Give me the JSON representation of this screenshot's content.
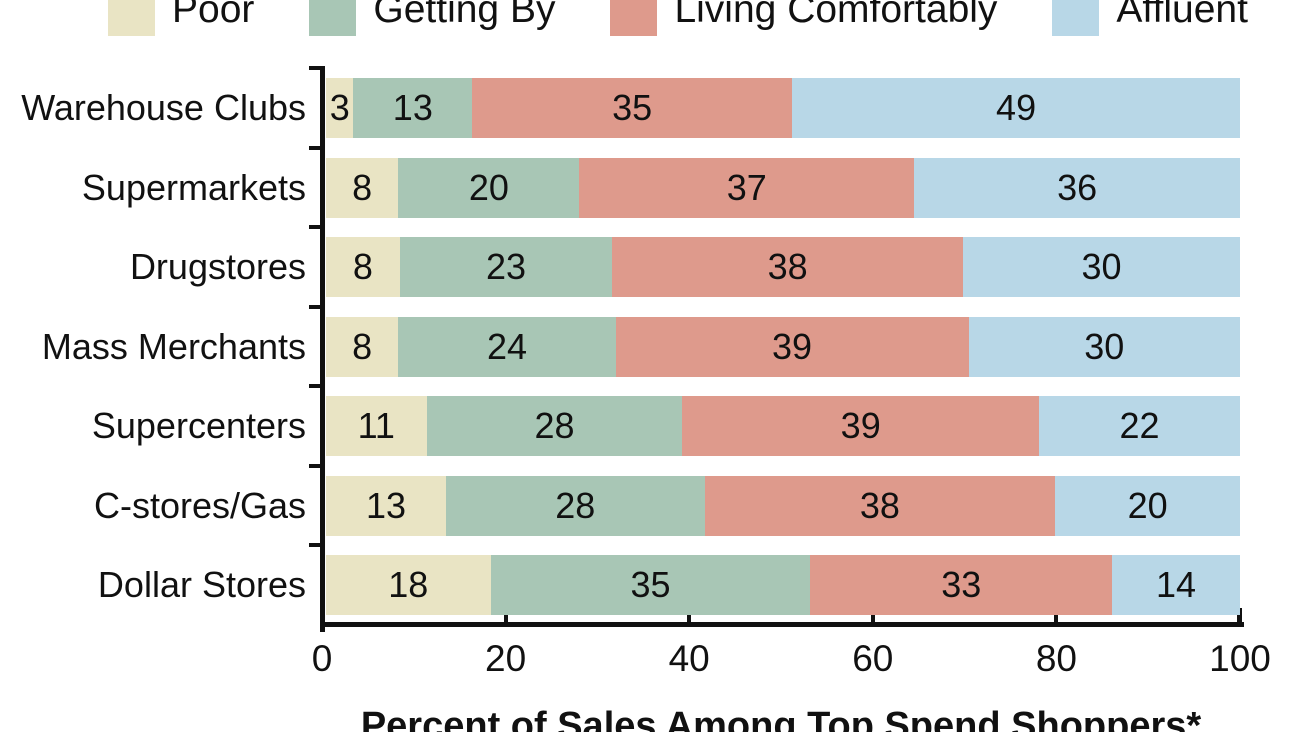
{
  "chart_data": {
    "type": "bar",
    "orientation": "horizontal-stacked",
    "title": "",
    "xlabel": "Percent of Sales Among Top Spend Shoppers*",
    "ylabel": "",
    "categories": [
      "Warehouse Clubs",
      "Supermarkets",
      "Drugstores",
      "Mass Merchants",
      "Supercenters",
      "C-stores/Gas",
      "Dollar Stores"
    ],
    "series": [
      {
        "name": "Poor",
        "color": "#e9e4c4",
        "values": [
          3,
          8,
          8,
          8,
          11,
          13,
          18
        ]
      },
      {
        "name": "Getting By",
        "color": "#a8c6b5",
        "values": [
          13,
          20,
          23,
          24,
          28,
          28,
          35
        ]
      },
      {
        "name": "Living Comfortably",
        "color": "#de9a8c",
        "values": [
          35,
          37,
          38,
          39,
          39,
          38,
          33
        ]
      },
      {
        "name": "Affluent",
        "color": "#b8d7e7",
        "values": [
          49,
          36,
          30,
          30,
          22,
          20,
          14
        ]
      }
    ],
    "x_ticks": [
      0,
      20,
      40,
      60,
      80,
      100
    ],
    "xlim": [
      0,
      100
    ],
    "grid": false,
    "legend_position": "top",
    "value_labels": "inside-center",
    "axis_color": "#111111",
    "text_color": "#111111"
  }
}
